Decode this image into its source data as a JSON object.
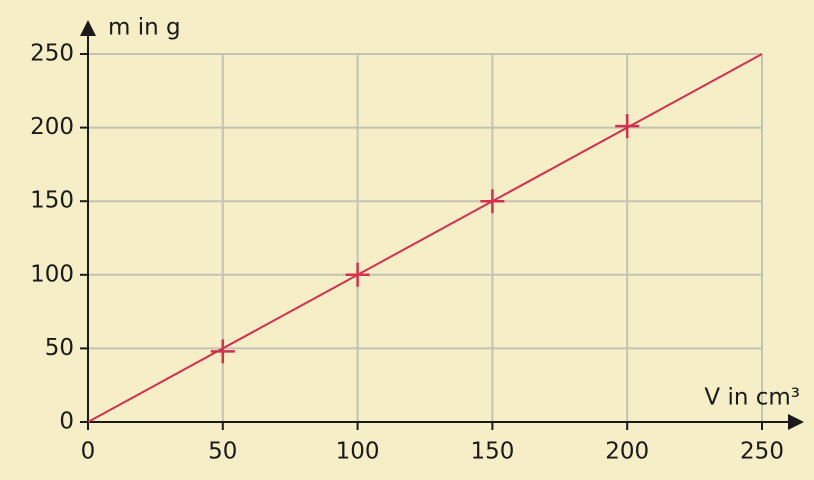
{
  "chart_data": {
    "type": "scatter",
    "x_label": "V in cm³",
    "y_label": "m in g",
    "points": {
      "x": [
        50,
        100,
        150,
        200
      ],
      "values": [
        48,
        100,
        150,
        201
      ],
      "color": "#d42f4e"
    },
    "line": {
      "x": [
        0,
        250
      ],
      "values": [
        0,
        250
      ],
      "color": "#d42f4e"
    },
    "xlim": [
      0,
      250
    ],
    "xticks": [
      0,
      50,
      100,
      150,
      200,
      250
    ],
    "ylim": [
      0,
      250
    ],
    "yticks": [
      0,
      50,
      100,
      150,
      200,
      250
    ],
    "grid": true
  }
}
